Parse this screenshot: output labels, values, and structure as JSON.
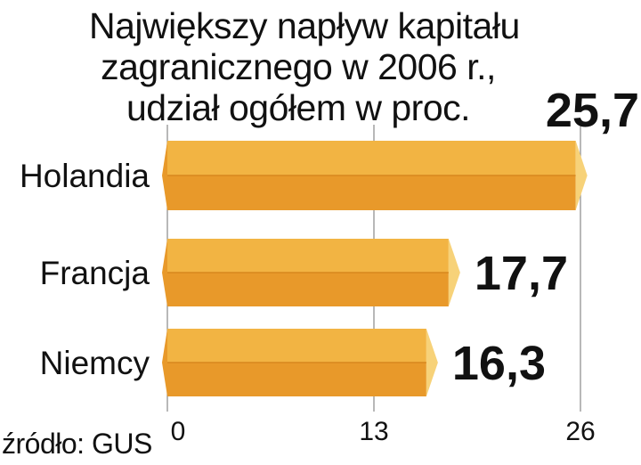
{
  "title_lines": [
    "Największy napływ kapitału",
    "zagranicznego  w 2006 r.,",
    "udział ogółem w proc."
  ],
  "source": "źródło: GUS",
  "chart_data": {
    "type": "bar",
    "orientation": "horizontal",
    "title": "Największy napływ kapitału zagranicznego  w 2006 r., udział ogółem w proc.",
    "categories": [
      "Holandia",
      "Francja",
      "Niemcy"
    ],
    "values": [
      25.7,
      17.7,
      16.3
    ],
    "value_labels": [
      "25,7",
      "17,7",
      "16,3"
    ],
    "xlim": [
      0,
      26
    ],
    "xticks": [
      0,
      13,
      26
    ],
    "xtick_labels": [
      "0",
      "13",
      "26"
    ],
    "grid": true,
    "colors": {
      "bar_top": "#F2B443",
      "bar_bottom": "#E8992A",
      "bar_end": "#F7D279",
      "grid": "#888888",
      "text": "#111111"
    }
  }
}
